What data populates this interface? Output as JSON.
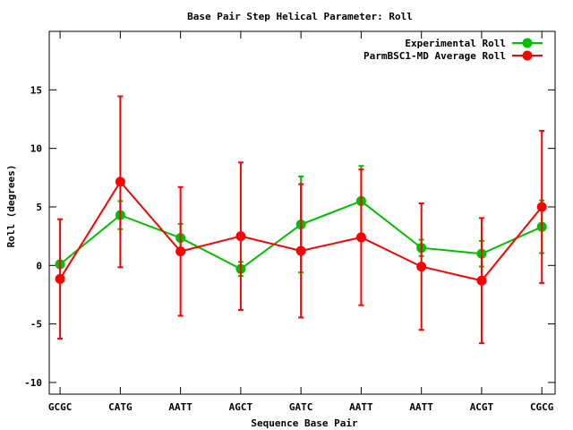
{
  "chart_data": {
    "type": "line",
    "title": "Base Pair Step Helical Parameter: Roll",
    "xlabel": "Sequence Base Pair",
    "ylabel": "Roll (degrees)",
    "categories": [
      "GCGC",
      "CATG",
      "AATT",
      "AGCT",
      "GATC",
      "AATT",
      "AATT",
      "ACGT",
      "CGCG"
    ],
    "ylim": [
      -11,
      20
    ],
    "xlim": [
      -0.18,
      8.22
    ],
    "yticks": [
      -10,
      -5,
      0,
      5,
      10,
      15
    ],
    "ytick_labels": [
      "-10",
      "-5",
      "0",
      "5",
      "10",
      "15"
    ],
    "grid": false,
    "legend_position": "top-right",
    "series": [
      {
        "name": "Experimental Roll",
        "color": "#00c000",
        "values": [
          0.1,
          4.3,
          2.35,
          -0.3,
          3.5,
          5.5,
          1.5,
          1.0,
          3.3
        ],
        "errors": [
          0.3,
          1.2,
          1.2,
          0.6,
          4.1,
          3.0,
          0.7,
          1.1,
          2.25
        ]
      },
      {
        "name": "ParmBSC1-MD Average Roll",
        "color": "#ff0000",
        "values": [
          -1.15,
          7.15,
          1.2,
          2.5,
          1.25,
          2.4,
          -0.1,
          -1.3,
          5.0
        ],
        "errors": [
          5.1,
          7.3,
          5.5,
          6.3,
          5.7,
          5.8,
          5.4,
          5.35,
          6.5
        ]
      }
    ]
  }
}
